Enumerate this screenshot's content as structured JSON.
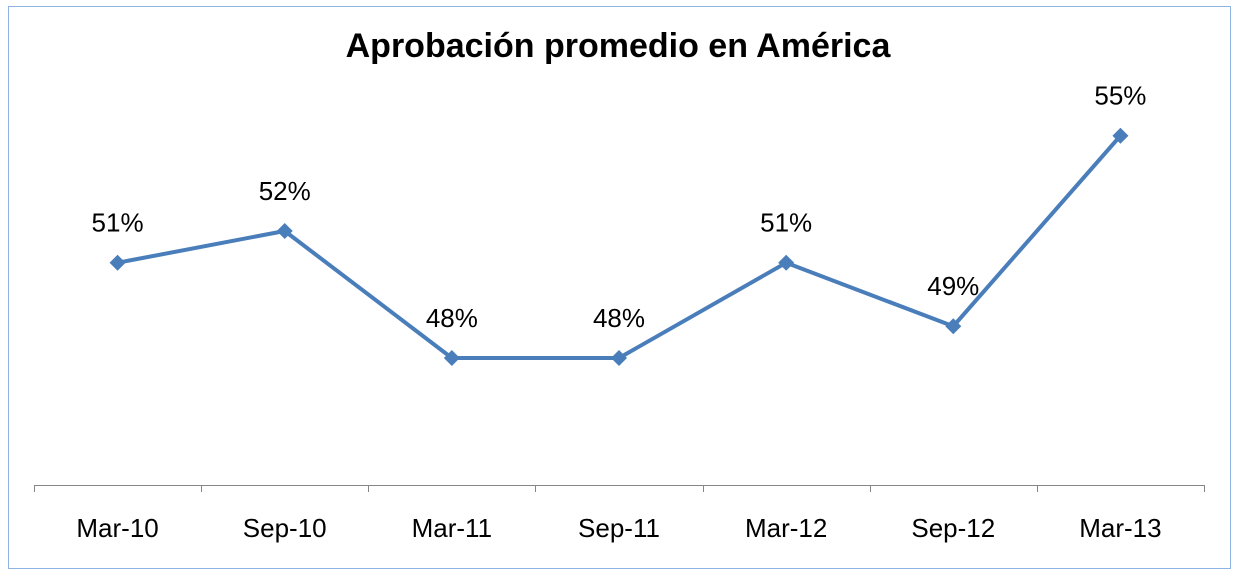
{
  "chart_data": {
    "type": "line",
    "title": "Aprobación promedio en América",
    "categories": [
      "Mar-10",
      "Sep-10",
      "Mar-11",
      "Sep-11",
      "Mar-12",
      "Sep-12",
      "Mar-13"
    ],
    "values": [
      51,
      52,
      48,
      48,
      51,
      49,
      55
    ],
    "value_labels": [
      "51%",
      "52%",
      "48%",
      "48%",
      "51%",
      "49%",
      "55%"
    ],
    "color": "#4a7ebb",
    "ylim": [
      44,
      56
    ]
  }
}
